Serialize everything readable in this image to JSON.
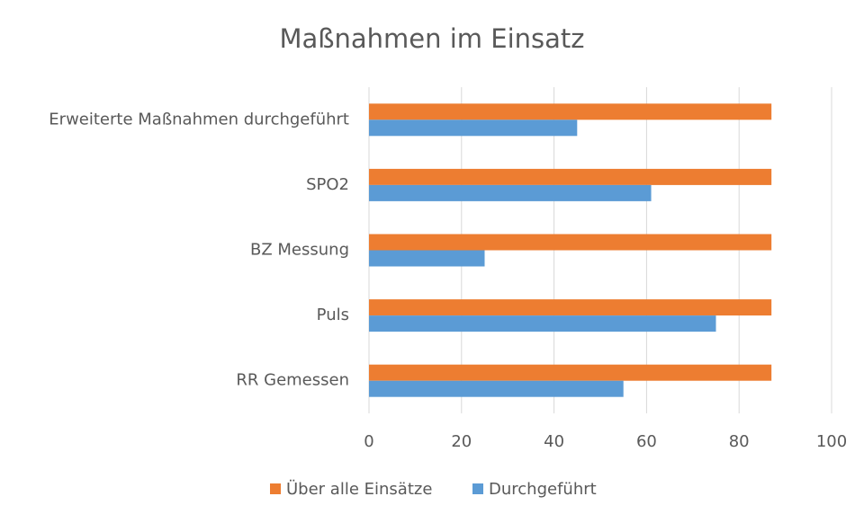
{
  "chart_data": {
    "type": "hbar",
    "title": "Maßnahmen im Einsatz",
    "categories": [
      "Erweiterte Maßnahmen durchgeführt",
      "SPO2",
      "BZ Messung",
      "Puls",
      "RR Gemessen"
    ],
    "series": [
      {
        "name": "Über alle Einsätze",
        "color": "#ED7D31",
        "values": [
          87,
          87,
          87,
          87,
          87
        ]
      },
      {
        "name": "Durchgeführt",
        "color": "#5B9BD5",
        "values": [
          45,
          61,
          25,
          75,
          55
        ]
      }
    ],
    "xlim": [
      0,
      100
    ],
    "xticks": [
      0,
      20,
      40,
      60,
      80,
      100
    ],
    "grid": true,
    "legend": "bottom"
  }
}
